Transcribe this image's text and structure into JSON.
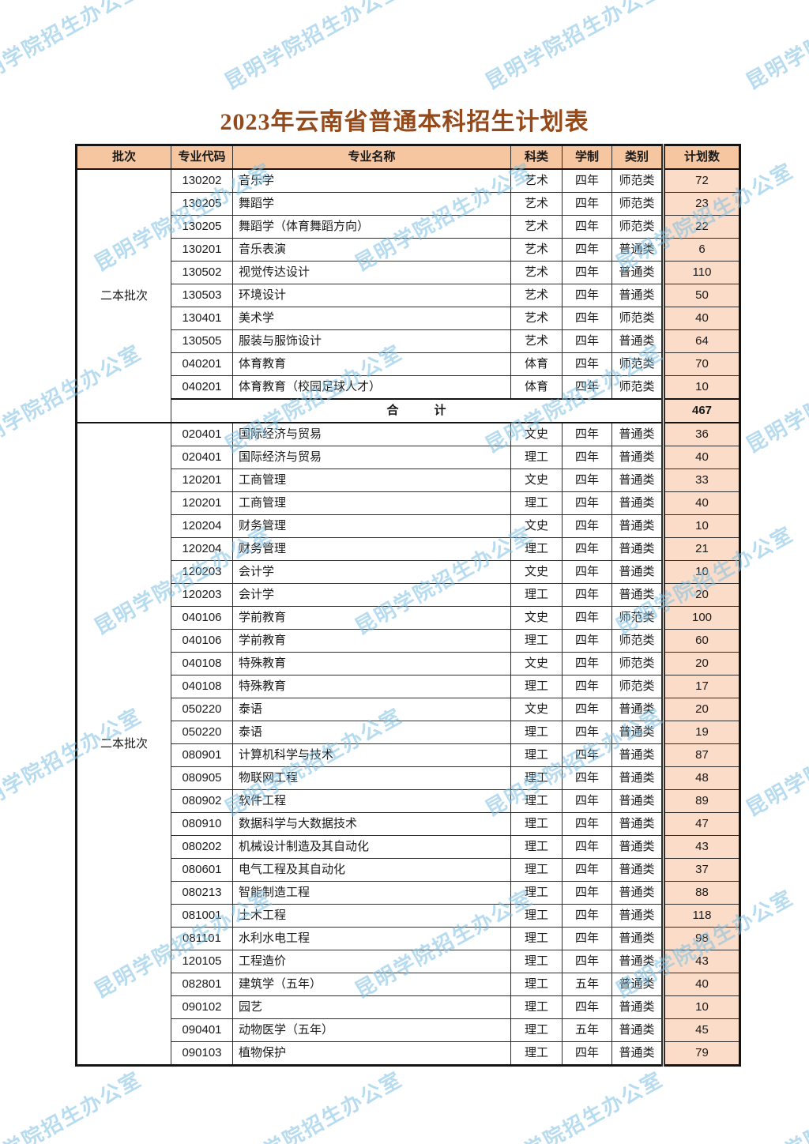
{
  "title": "2023年云南省普通本科招生计划表",
  "watermark": {
    "text": "昆明学院招生办公室",
    "color": "#7ec1e5"
  },
  "colors": {
    "title": "#944a1a",
    "header_bg": "#f5c6a0",
    "plan_bg": "#fbdcc8"
  },
  "table": {
    "headers": [
      "批次",
      "专业代码",
      "专业名称",
      "科类",
      "学制",
      "类别",
      "计划数"
    ],
    "sections": [
      {
        "batch": "二本批次",
        "rows": [
          {
            "code": "130202",
            "name": "音乐学",
            "subject": "艺术",
            "years": "四年",
            "type": "师范类",
            "count": "72"
          },
          {
            "code": "130205",
            "name": "舞蹈学",
            "subject": "艺术",
            "years": "四年",
            "type": "师范类",
            "count": "23"
          },
          {
            "code": "130205",
            "name": "舞蹈学（体育舞蹈方向）",
            "subject": "艺术",
            "years": "四年",
            "type": "师范类",
            "count": "22"
          },
          {
            "code": "130201",
            "name": "音乐表演",
            "subject": "艺术",
            "years": "四年",
            "type": "普通类",
            "count": "6"
          },
          {
            "code": "130502",
            "name": "视觉传达设计",
            "subject": "艺术",
            "years": "四年",
            "type": "普通类",
            "count": "110"
          },
          {
            "code": "130503",
            "name": "环境设计",
            "subject": "艺术",
            "years": "四年",
            "type": "普通类",
            "count": "50"
          },
          {
            "code": "130401",
            "name": "美术学",
            "subject": "艺术",
            "years": "四年",
            "type": "师范类",
            "count": "40"
          },
          {
            "code": "130505",
            "name": "服装与服饰设计",
            "subject": "艺术",
            "years": "四年",
            "type": "普通类",
            "count": "64"
          },
          {
            "code": "040201",
            "name": "体育教育",
            "subject": "体育",
            "years": "四年",
            "type": "师范类",
            "count": "70"
          },
          {
            "code": "040201",
            "name": "体育教育（校园足球人才）",
            "subject": "体育",
            "years": "四年",
            "type": "师范类",
            "count": "10"
          }
        ],
        "total_label": "合　　　计",
        "total": "467"
      },
      {
        "batch": "二本批次",
        "rows": [
          {
            "code": "020401",
            "name": "国际经济与贸易",
            "subject": "文史",
            "years": "四年",
            "type": "普通类",
            "count": "36"
          },
          {
            "code": "020401",
            "name": "国际经济与贸易",
            "subject": "理工",
            "years": "四年",
            "type": "普通类",
            "count": "40"
          },
          {
            "code": "120201",
            "name": "工商管理",
            "subject": "文史",
            "years": "四年",
            "type": "普通类",
            "count": "33"
          },
          {
            "code": "120201",
            "name": "工商管理",
            "subject": "理工",
            "years": "四年",
            "type": "普通类",
            "count": "40"
          },
          {
            "code": "120204",
            "name": "财务管理",
            "subject": "文史",
            "years": "四年",
            "type": "普通类",
            "count": "10"
          },
          {
            "code": "120204",
            "name": "财务管理",
            "subject": "理工",
            "years": "四年",
            "type": "普通类",
            "count": "21"
          },
          {
            "code": "120203",
            "name": "会计学",
            "subject": "文史",
            "years": "四年",
            "type": "普通类",
            "count": "10"
          },
          {
            "code": "120203",
            "name": "会计学",
            "subject": "理工",
            "years": "四年",
            "type": "普通类",
            "count": "20"
          },
          {
            "code": "040106",
            "name": "学前教育",
            "subject": "文史",
            "years": "四年",
            "type": "师范类",
            "count": "100"
          },
          {
            "code": "040106",
            "name": "学前教育",
            "subject": "理工",
            "years": "四年",
            "type": "师范类",
            "count": "60"
          },
          {
            "code": "040108",
            "name": "特殊教育",
            "subject": "文史",
            "years": "四年",
            "type": "师范类",
            "count": "20"
          },
          {
            "code": "040108",
            "name": "特殊教育",
            "subject": "理工",
            "years": "四年",
            "type": "师范类",
            "count": "17"
          },
          {
            "code": "050220",
            "name": "泰语",
            "subject": "文史",
            "years": "四年",
            "type": "普通类",
            "count": "20"
          },
          {
            "code": "050220",
            "name": "泰语",
            "subject": "理工",
            "years": "四年",
            "type": "普通类",
            "count": "19"
          },
          {
            "code": "080901",
            "name": "计算机科学与技术",
            "subject": "理工",
            "years": "四年",
            "type": "普通类",
            "count": "87"
          },
          {
            "code": "080905",
            "name": "物联网工程",
            "subject": "理工",
            "years": "四年",
            "type": "普通类",
            "count": "48"
          },
          {
            "code": "080902",
            "name": "软件工程",
            "subject": "理工",
            "years": "四年",
            "type": "普通类",
            "count": "89"
          },
          {
            "code": "080910",
            "name": "数据科学与大数据技术",
            "subject": "理工",
            "years": "四年",
            "type": "普通类",
            "count": "47"
          },
          {
            "code": "080202",
            "name": "机械设计制造及其自动化",
            "subject": "理工",
            "years": "四年",
            "type": "普通类",
            "count": "43"
          },
          {
            "code": "080601",
            "name": "电气工程及其自动化",
            "subject": "理工",
            "years": "四年",
            "type": "普通类",
            "count": "37"
          },
          {
            "code": "080213",
            "name": "智能制造工程",
            "subject": "理工",
            "years": "四年",
            "type": "普通类",
            "count": "88"
          },
          {
            "code": "081001",
            "name": "土木工程",
            "subject": "理工",
            "years": "四年",
            "type": "普通类",
            "count": "118"
          },
          {
            "code": "081101",
            "name": "水利水电工程",
            "subject": "理工",
            "years": "四年",
            "type": "普通类",
            "count": "98"
          },
          {
            "code": "120105",
            "name": "工程造价",
            "subject": "理工",
            "years": "四年",
            "type": "普通类",
            "count": "43"
          },
          {
            "code": "082801",
            "name": "建筑学（五年）",
            "subject": "理工",
            "years": "五年",
            "type": "普通类",
            "count": "40"
          },
          {
            "code": "090102",
            "name": "园艺",
            "subject": "理工",
            "years": "四年",
            "type": "普通类",
            "count": "10"
          },
          {
            "code": "090401",
            "name": "动物医学（五年）",
            "subject": "理工",
            "years": "五年",
            "type": "普通类",
            "count": "45"
          },
          {
            "code": "090103",
            "name": "植物保护",
            "subject": "理工",
            "years": "四年",
            "type": "普通类",
            "count": "79"
          }
        ]
      }
    ]
  }
}
